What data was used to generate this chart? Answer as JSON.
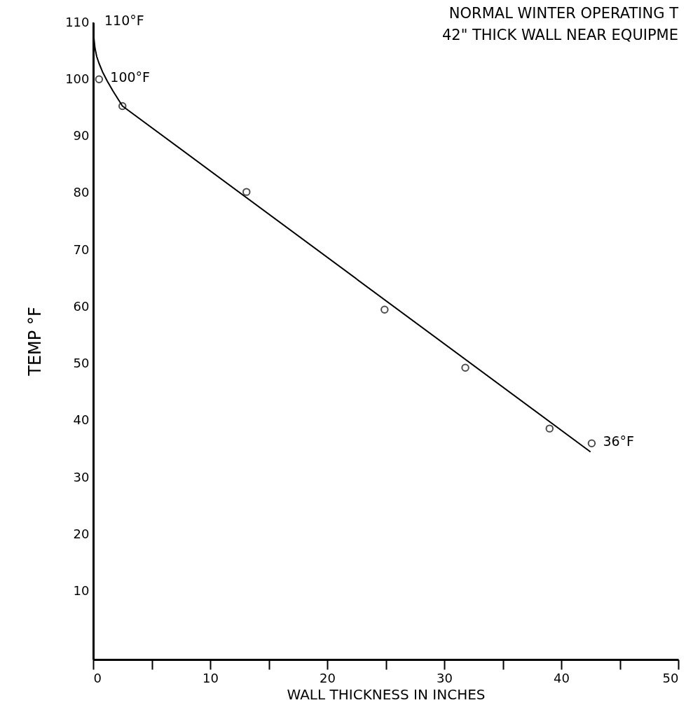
{
  "chart_data": {
    "type": "scatter",
    "title": "NORMAL WINTER OPERATING T",
    "subtitle": "42\" THICK WALL NEAR EQUIPME",
    "xlabel": "WALL THICKNESS IN INCHES",
    "ylabel": "TEMP °F",
    "xlim": [
      0,
      50
    ],
    "xticks": [
      0,
      {
        "value": 5,
        "label": null
      },
      10,
      {
        "value": 15,
        "label": null
      },
      20,
      {
        "value": 25,
        "label": null
      },
      30,
      {
        "value": 35,
        "label": null
      },
      40,
      {
        "value": 45,
        "label": null
      },
      50
    ],
    "ylim": [
      -2,
      110
    ],
    "yticks": [
      10,
      20,
      30,
      40,
      50,
      60,
      70,
      80,
      90,
      100,
      110
    ],
    "marker": "circle",
    "series": [
      {
        "color": "#000000",
        "x": [
          0.5,
          2.5,
          13.1,
          24.9,
          31.8,
          39.0,
          42.6
        ],
        "values": [
          100,
          95.3,
          80.2,
          59.5,
          49.3,
          38.6,
          36
        ]
      },
      {
        "type": "line",
        "color": "#000000",
        "marker": "none",
        "x": [
          0,
          0.05,
          0.15,
          0.3,
          0.5,
          0.8,
          1.2,
          1.7,
          2.5,
          42.5
        ],
        "values": [
          110,
          107.5,
          105.5,
          104,
          102.8,
          101.3,
          99.7,
          97.9,
          95.3,
          34.5
        ]
      }
    ],
    "annotations": [
      {
        "text": "110°F",
        "x": 0,
        "y": 110
      },
      {
        "text": "100°F",
        "x": 0.5,
        "y": 100
      },
      {
        "text": "36°F",
        "x": 42.6,
        "y": 36
      }
    ]
  }
}
